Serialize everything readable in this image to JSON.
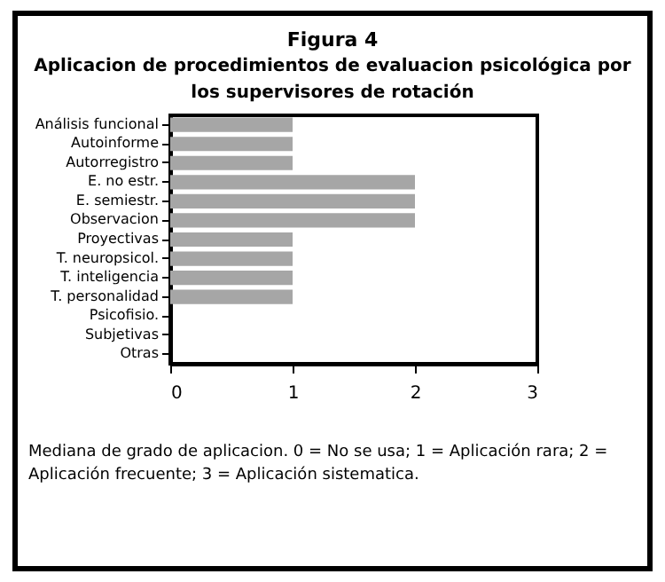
{
  "chart_data": {
    "type": "bar",
    "orientation": "horizontal",
    "title": "Figura 4",
    "subtitle": "Aplicacion de procedimientos de evaluacion psicológica por los supervisores de rotación",
    "categories": [
      "Análisis funcional",
      "Autoinforme",
      "Autorregistro",
      "E. no estr.",
      "E. semiestr.",
      "Observacion",
      "Proyectivas",
      "T. neuropsicol.",
      "T. inteligencia",
      "T. personalidad",
      "Psicofisio.",
      "Subjetivas",
      "Otras"
    ],
    "values": [
      1,
      1,
      1,
      2,
      2,
      2,
      1,
      1,
      1,
      1,
      0,
      0,
      0
    ],
    "color": "#a6a6a6",
    "xlim": [
      0,
      3
    ],
    "xticks": [
      0,
      1,
      2,
      3
    ],
    "grid": false,
    "annotations": [
      "Mediana de grado de aplicacion. 0 = No se usa; 1 = Aplicación rara; 2 = Aplicación frecuente; 3 = Aplicación sistematica."
    ]
  }
}
